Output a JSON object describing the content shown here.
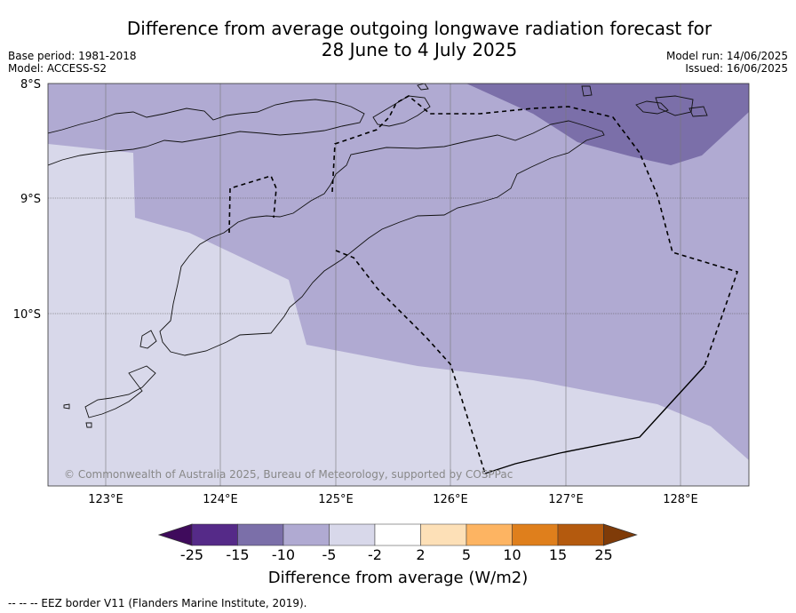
{
  "title": {
    "line1": "Difference from average outgoing longwave radiation forecast for",
    "line2": "28 June to 4 July 2025"
  },
  "meta": {
    "base_period": "Base period: 1981-2018",
    "model": "Model: ACCESS-S2",
    "model_run": "Model run: 14/06/2025",
    "issued": "Issued: 16/06/2025"
  },
  "map": {
    "lat_labels": [
      "8°S",
      "9°S",
      "10°S"
    ],
    "lon_labels": [
      "123°E",
      "124°E",
      "125°E",
      "126°E",
      "127°E",
      "128°E"
    ],
    "copyright": "© Commonwealth of Australia 2025, Bureau of Meteorology, supported by COSPPac",
    "fill_colors": {
      "cat_minus15_minus10": "#7b6fa9",
      "cat_minus10_minus5": "#b0aad2",
      "cat_minus5_minus2": "#d8d8ea"
    }
  },
  "colorbar": {
    "tick_labels": [
      "-25",
      "-15",
      "-10",
      "-5",
      "-2",
      "2",
      "5",
      "10",
      "15",
      "25"
    ],
    "colors": [
      "#3f0b5c",
      "#552a88",
      "#7b6fa9",
      "#b0aad2",
      "#d8d8ea",
      "#ffffff",
      "#fde0b7",
      "#fdb462",
      "#df7f1c",
      "#b45a0e",
      "#7f3b08"
    ],
    "label": "Difference from average (W/m2)"
  },
  "footnote": "--  --  -- EEZ border V11 (Flanders Marine Institute, 2019)."
}
